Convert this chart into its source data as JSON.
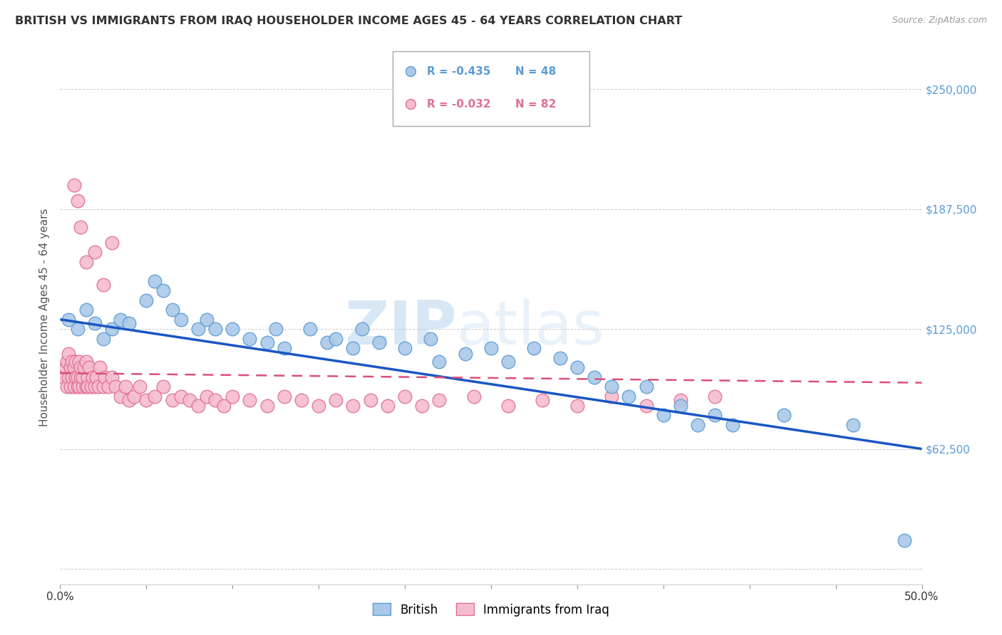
{
  "title": "BRITISH VS IMMIGRANTS FROM IRAQ HOUSEHOLDER INCOME AGES 45 - 64 YEARS CORRELATION CHART",
  "source": "Source: ZipAtlas.com",
  "ylabel": "Householder Income Ages 45 - 64 years",
  "xlim": [
    0.0,
    0.5
  ],
  "ylim": [
    -8000,
    270000
  ],
  "yticks": [
    0,
    62500,
    125000,
    187500,
    250000
  ],
  "ytick_labels": [
    "",
    "$62,500",
    "$125,000",
    "$187,500",
    "$250,000"
  ],
  "xticks": [
    0.0,
    0.05,
    0.1,
    0.15,
    0.2,
    0.25,
    0.3,
    0.35,
    0.4,
    0.45,
    0.5
  ],
  "xtick_labels": [
    "0.0%",
    "",
    "",
    "",
    "",
    "",
    "",
    "",
    "",
    "",
    "50.0%"
  ],
  "british_color": "#aac9e8",
  "british_edge_color": "#5b9bd5",
  "iraq_color": "#f5bcd0",
  "iraq_edge_color": "#e07090",
  "trend_british_color": "#1a56c4",
  "trend_iraq_color": "#d95075",
  "legend_R_british": "R = -0.435",
  "legend_N_british": "N = 48",
  "legend_R_iraq": "R = -0.032",
  "legend_N_iraq": "N = 82",
  "watermark_zip": "ZIP",
  "watermark_atlas": "atlas",
  "british_x": [
    0.005,
    0.01,
    0.015,
    0.02,
    0.025,
    0.03,
    0.035,
    0.04,
    0.05,
    0.055,
    0.06,
    0.065,
    0.07,
    0.08,
    0.085,
    0.09,
    0.1,
    0.11,
    0.12,
    0.125,
    0.13,
    0.145,
    0.155,
    0.16,
    0.17,
    0.175,
    0.185,
    0.2,
    0.215,
    0.22,
    0.235,
    0.25,
    0.26,
    0.275,
    0.29,
    0.3,
    0.31,
    0.32,
    0.33,
    0.34,
    0.35,
    0.36,
    0.37,
    0.38,
    0.39,
    0.42,
    0.46,
    0.49
  ],
  "british_y": [
    130000,
    125000,
    135000,
    128000,
    120000,
    125000,
    130000,
    128000,
    140000,
    150000,
    145000,
    135000,
    130000,
    125000,
    130000,
    125000,
    125000,
    120000,
    118000,
    125000,
    115000,
    125000,
    118000,
    120000,
    115000,
    125000,
    118000,
    115000,
    120000,
    108000,
    112000,
    115000,
    108000,
    115000,
    110000,
    105000,
    100000,
    95000,
    90000,
    95000,
    80000,
    85000,
    75000,
    80000,
    75000,
    80000,
    75000,
    15000
  ],
  "iraq_x": [
    0.002,
    0.003,
    0.004,
    0.004,
    0.005,
    0.005,
    0.006,
    0.006,
    0.007,
    0.007,
    0.008,
    0.008,
    0.009,
    0.009,
    0.01,
    0.01,
    0.011,
    0.011,
    0.012,
    0.012,
    0.013,
    0.013,
    0.014,
    0.015,
    0.015,
    0.016,
    0.016,
    0.017,
    0.018,
    0.019,
    0.02,
    0.021,
    0.022,
    0.023,
    0.025,
    0.026,
    0.028,
    0.03,
    0.032,
    0.035,
    0.038,
    0.04,
    0.043,
    0.046,
    0.05,
    0.055,
    0.06,
    0.065,
    0.07,
    0.075,
    0.08,
    0.085,
    0.09,
    0.095,
    0.1,
    0.11,
    0.12,
    0.13,
    0.14,
    0.15,
    0.16,
    0.17,
    0.18,
    0.19,
    0.2,
    0.21,
    0.22,
    0.24,
    0.26,
    0.28,
    0.3,
    0.32,
    0.34,
    0.36,
    0.38,
    0.02,
    0.025,
    0.03,
    0.008,
    0.01,
    0.012,
    0.015
  ],
  "iraq_y": [
    100000,
    105000,
    108000,
    95000,
    112000,
    100000,
    105000,
    95000,
    108000,
    100000,
    95000,
    105000,
    100000,
    108000,
    95000,
    100000,
    108000,
    95000,
    100000,
    105000,
    95000,
    100000,
    105000,
    95000,
    108000,
    100000,
    95000,
    105000,
    95000,
    100000,
    95000,
    100000,
    95000,
    105000,
    95000,
    100000,
    95000,
    100000,
    95000,
    90000,
    95000,
    88000,
    90000,
    95000,
    88000,
    90000,
    95000,
    88000,
    90000,
    88000,
    85000,
    90000,
    88000,
    85000,
    90000,
    88000,
    85000,
    90000,
    88000,
    85000,
    88000,
    85000,
    88000,
    85000,
    90000,
    85000,
    88000,
    90000,
    85000,
    88000,
    85000,
    90000,
    85000,
    88000,
    90000,
    165000,
    148000,
    170000,
    200000,
    192000,
    178000,
    160000
  ]
}
